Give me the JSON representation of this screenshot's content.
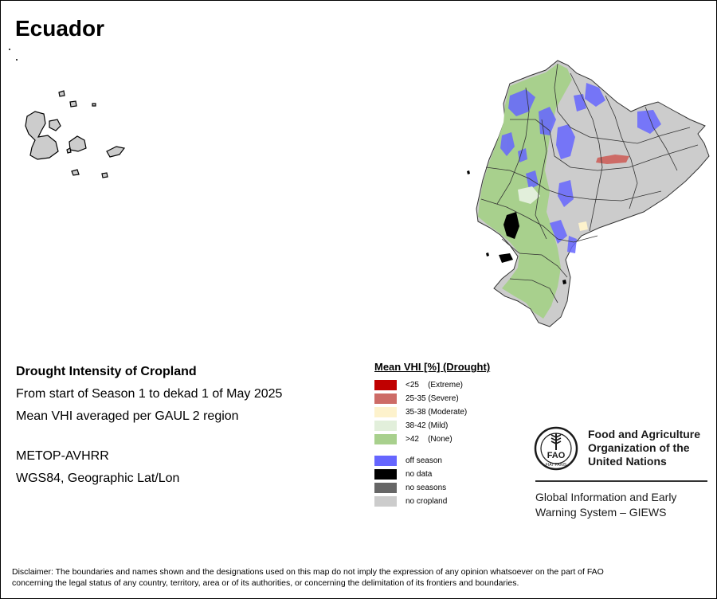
{
  "title": "Ecuador",
  "info": {
    "heading": "Drought Intensity of Cropland",
    "period": "From start of Season 1 to dekad 1 of May 2025",
    "method": "Mean VHI averaged per GAUL 2 region",
    "sensor": "METOP-AVHRR",
    "projection": "WGS84, Geographic Lat/Lon"
  },
  "legend": {
    "title": "Mean VHI [%] (Drought)",
    "classes": [
      {
        "label": "<25    (Extreme)",
        "color": "#c00000"
      },
      {
        "label": "25-35 (Severe)",
        "color": "#cd6b66"
      },
      {
        "label": "35-38 (Moderate)",
        "color": "#fdf2cc"
      },
      {
        "label": "38-42 (Mild)",
        "color": "#e2efdb"
      },
      {
        "label": ">42    (None)",
        "color": "#a8d08d"
      }
    ],
    "other": [
      {
        "label": "off season",
        "color": "#6666ff"
      },
      {
        "label": "no data",
        "color": "#000000"
      },
      {
        "label": "no seasons",
        "color": "#666666"
      },
      {
        "label": "no cropland",
        "color": "#cccccc"
      }
    ]
  },
  "fao": {
    "name_line1": "Food and Agriculture",
    "name_line2": "Organization of the",
    "name_line3": "United Nations",
    "logo_letters": "FAO",
    "logo_motto": "FIAT PANIS",
    "giews_line1": "Global Information and Early",
    "giews_line2": "Warning System – GIEWS"
  },
  "disclaimer_line1": "Disclaimer: The boundaries and names shown and the designations used on this map do not imply the expression of any opinion whatsoever on the part of FAO",
  "disclaimer_line2": "concerning the legal status of any country, territory, area or of its authorities, or concerning the delimitation of its frontiers and boundaries."
}
